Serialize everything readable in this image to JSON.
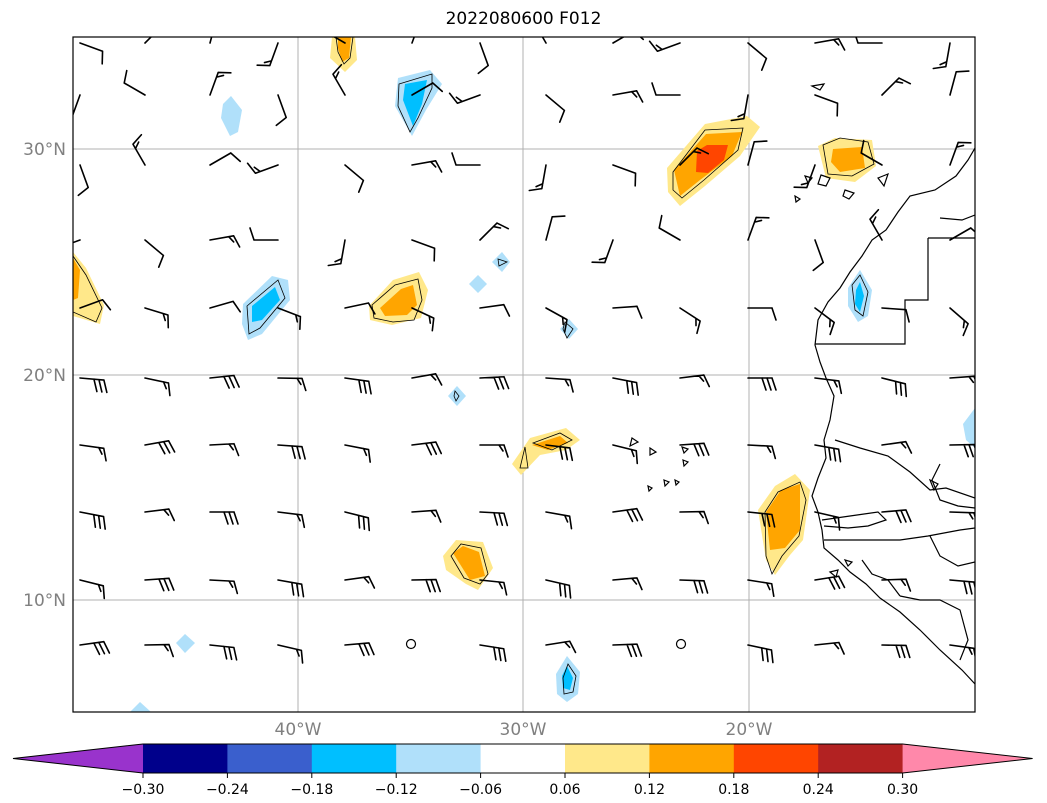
{
  "title": "2022080600 F012",
  "map": {
    "lat_ticks": [
      "30°N",
      "20°N",
      "10°N"
    ],
    "lon_ticks": [
      "40°W",
      "30°W",
      "20°W"
    ],
    "grid": true,
    "gridline_color": "#b0b0b0",
    "tick_label_color": "#808080",
    "coastline_color": "#000000",
    "wind_barb_color": "#000000"
  },
  "colorbar": {
    "levels": [
      "−0.30",
      "−0.24",
      "−0.18",
      "−0.12",
      "−0.06",
      "0.06",
      "0.12",
      "0.18",
      "0.24",
      "0.30"
    ],
    "colors": [
      "#9933cc",
      "#00008b",
      "#3a5fcd",
      "#00bfff",
      "#b0e0fa",
      "#ffffff",
      "#ffe88a",
      "#ffa500",
      "#ff4500",
      "#b22222",
      "#ff88aa"
    ],
    "extend": "both"
  }
}
